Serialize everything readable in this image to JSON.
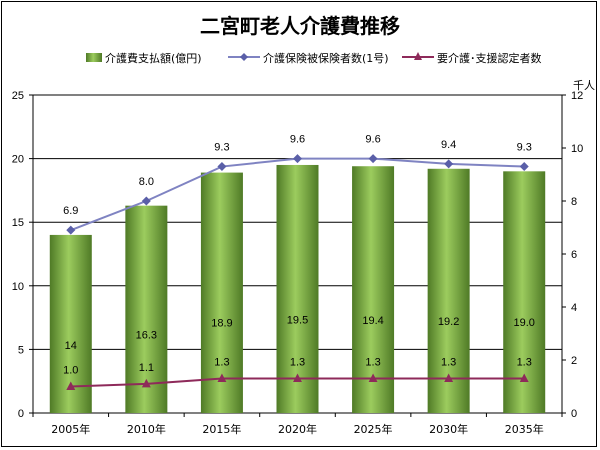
{
  "chart_data": {
    "type": "bar",
    "title": "二宮町老人介護費推移",
    "categories": [
      "2005年",
      "2010年",
      "2015年",
      "2020年",
      "2025年",
      "2030年",
      "2035年"
    ],
    "series": [
      {
        "name": "介護費支払額(億円)",
        "type": "bar",
        "axis": "left",
        "color": "#6f9e3c",
        "values": [
          14,
          16.3,
          18.9,
          19.5,
          19.4,
          19.2,
          19.0
        ],
        "labels": [
          "14",
          "16.3",
          "18.9",
          "19.5",
          "19.4",
          "19.2",
          "19.0"
        ]
      },
      {
        "name": "介護保険被保険者数(1号)",
        "type": "line",
        "axis": "right",
        "color": "#7f83c2",
        "marker": "diamond",
        "values": [
          6.9,
          8.0,
          9.3,
          9.6,
          9.6,
          9.4,
          9.3
        ],
        "labels": [
          "6.9",
          "8.0",
          "9.3",
          "9.6",
          "9.6",
          "9.4",
          "9.3"
        ]
      },
      {
        "name": "要介護･支援認定者数",
        "type": "line",
        "axis": "right",
        "color": "#8e2a5a",
        "marker": "triangle",
        "values": [
          1.0,
          1.1,
          1.3,
          1.3,
          1.3,
          1.3,
          1.3
        ],
        "labels": [
          "1.0",
          "1.1",
          "1.3",
          "1.3",
          "1.3",
          "1.3",
          "1.3"
        ]
      }
    ],
    "y_left": {
      "ylim": [
        0,
        25
      ],
      "ticks": [
        "0",
        "5",
        "10",
        "15",
        "20",
        "25"
      ]
    },
    "y_right": {
      "ylim": [
        0,
        12
      ],
      "ticks": [
        "0",
        "2",
        "4",
        "6",
        "8",
        "10",
        "12"
      ],
      "unit": "千人"
    },
    "grid": true,
    "legend_position": "top"
  }
}
